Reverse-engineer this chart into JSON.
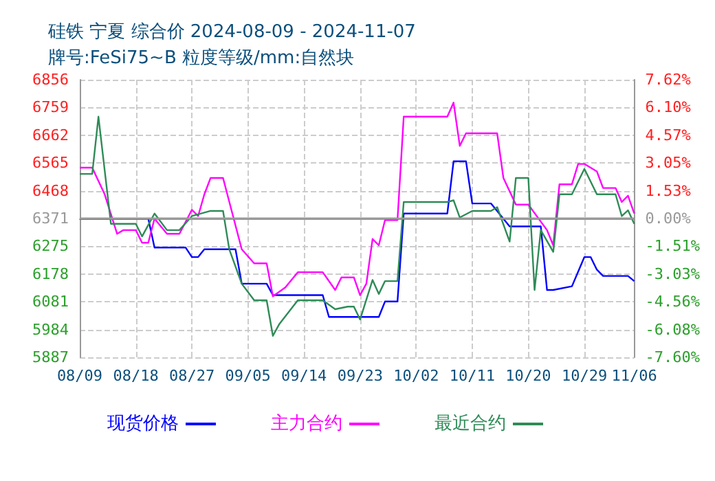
{
  "chart_data": {
    "type": "line",
    "title": "硅铁 宁夏 综合价 2024-08-09 - 2024-11-07",
    "subtitle": "牌号:FeSi75~B 粒度等级/mm:自然块",
    "xlim": [
      "2024-08-09",
      "2024-11-06"
    ],
    "xticks": [
      {
        "value": "2024-08-09",
        "label": "08/09"
      },
      {
        "value": "2024-08-18",
        "label": "08/18"
      },
      {
        "value": "2024-08-27",
        "label": "08/27"
      },
      {
        "value": "2024-09-05",
        "label": "09/05"
      },
      {
        "value": "2024-09-14",
        "label": "09/14"
      },
      {
        "value": "2024-09-23",
        "label": "09/23"
      },
      {
        "value": "2024-10-02",
        "label": "10/02"
      },
      {
        "value": "2024-10-11",
        "label": "10/11"
      },
      {
        "value": "2024-10-20",
        "label": "10/20"
      },
      {
        "value": "2024-10-29",
        "label": "10/29"
      },
      {
        "value": "2024-11-06",
        "label": "11/06"
      }
    ],
    "ylim": [
      5887,
      6856
    ],
    "yticks": [
      5887,
      5984,
      6081,
      6178,
      6275,
      6371,
      6468,
      6565,
      6662,
      6759,
      6856
    ],
    "y2lim": [
      -7.6,
      7.62
    ],
    "y2ticks": [
      {
        "value": -7.6,
        "label": "-7.60%"
      },
      {
        "value": -6.08,
        "label": "-6.08%"
      },
      {
        "value": -4.56,
        "label": "-4.56%"
      },
      {
        "value": -3.03,
        "label": "-3.03%"
      },
      {
        "value": -1.51,
        "label": "-1.51%"
      },
      {
        "value": 0,
        "label": "0.00%"
      },
      {
        "value": 1.53,
        "label": "1.53%"
      },
      {
        "value": 3.05,
        "label": "3.05%"
      },
      {
        "value": 4.57,
        "label": "4.57%"
      },
      {
        "value": 6.1,
        "label": "6.10%"
      },
      {
        "value": 7.62,
        "label": "7.62%"
      }
    ],
    "grid": true,
    "legend": "bottom",
    "marker": "none",
    "line_style": "solid",
    "ref_lines": [
      {
        "axis": "y",
        "value": 6371,
        "color": "#999999",
        "line_style": "solid"
      }
    ],
    "series": [
      {
        "name": "现货价格",
        "color": "#0000ff",
        "x": [
          "2024-08-09",
          "2024-08-20",
          "2024-08-21",
          "2024-08-26",
          "2024-08-27",
          "2024-08-28",
          "2024-08-29",
          "2024-09-03",
          "2024-09-04",
          "2024-09-08",
          "2024-09-09",
          "2024-09-17",
          "2024-09-18",
          "2024-09-26",
          "2024-09-27",
          "2024-09-29",
          "2024-09-30",
          "2024-10-07",
          "2024-10-08",
          "2024-10-10",
          "2024-10-11",
          "2024-10-14",
          "2024-10-17",
          "2024-10-22",
          "2024-10-23",
          "2024-10-24",
          "2024-10-27",
          "2024-10-29",
          "2024-10-30",
          "2024-10-31",
          "2024-11-01",
          "2024-11-05",
          "2024-11-06"
        ],
        "values": [
          6371,
          6371,
          6270,
          6270,
          6237,
          6237,
          6264,
          6264,
          6144,
          6144,
          6104,
          6104,
          6028,
          6028,
          6082,
          6082,
          6389,
          6389,
          6571,
          6571,
          6424,
          6424,
          6344,
          6344,
          6122,
          6122,
          6135,
          6237,
          6237,
          6193,
          6171,
          6171,
          6153
        ]
      },
      {
        "name": "主力合约",
        "color": "#ff00ff",
        "x": [
          "2024-08-09",
          "2024-08-11",
          "2024-08-13",
          "2024-08-15",
          "2024-08-16",
          "2024-08-18",
          "2024-08-19",
          "2024-08-20",
          "2024-08-21",
          "2024-08-23",
          "2024-08-25",
          "2024-08-27",
          "2024-08-28",
          "2024-08-29",
          "2024-08-30",
          "2024-09-01",
          "2024-09-04",
          "2024-09-06",
          "2024-09-08",
          "2024-09-09",
          "2024-09-11",
          "2024-09-13",
          "2024-09-17",
          "2024-09-19",
          "2024-09-20",
          "2024-09-22",
          "2024-09-23",
          "2024-09-24",
          "2024-09-25",
          "2024-09-26",
          "2024-09-27",
          "2024-09-29",
          "2024-09-30",
          "2024-10-07",
          "2024-10-08",
          "2024-10-09",
          "2024-10-10",
          "2024-10-15",
          "2024-10-16",
          "2024-10-18",
          "2024-10-20",
          "2024-10-23",
          "2024-10-24",
          "2024-10-25",
          "2024-10-27",
          "2024-10-28",
          "2024-10-29",
          "2024-10-31",
          "2024-11-01",
          "2024-11-03",
          "2024-11-04",
          "2024-11-05",
          "2024-11-06"
        ],
        "values": [
          6549,
          6549,
          6456,
          6318,
          6331,
          6331,
          6287,
          6287,
          6371,
          6318,
          6318,
          6402,
          6380,
          6456,
          6513,
          6513,
          6264,
          6215,
          6215,
          6100,
          6131,
          6184,
          6184,
          6122,
          6166,
          6166,
          6104,
          6144,
          6300,
          6278,
          6366,
          6366,
          6727,
          6727,
          6776,
          6625,
          6669,
          6669,
          6513,
          6420,
          6420,
          6331,
          6278,
          6491,
          6491,
          6562,
          6562,
          6536,
          6478,
          6478,
          6429,
          6451,
          6389
        ]
      },
      {
        "name": "最近合约",
        "color": "#2e8b57",
        "x": [
          "2024-08-09",
          "2024-08-11",
          "2024-08-12",
          "2024-08-14",
          "2024-08-18",
          "2024-08-19",
          "2024-08-21",
          "2024-08-23",
          "2024-08-25",
          "2024-08-27",
          "2024-08-30",
          "2024-09-01",
          "2024-09-02",
          "2024-09-04",
          "2024-09-06",
          "2024-09-08",
          "2024-09-09",
          "2024-09-10",
          "2024-09-13",
          "2024-09-17",
          "2024-09-19",
          "2024-09-21",
          "2024-09-22",
          "2024-09-23",
          "2024-09-25",
          "2024-09-26",
          "2024-09-27",
          "2024-09-29",
          "2024-09-30",
          "2024-10-07",
          "2024-10-08",
          "2024-10-09",
          "2024-10-11",
          "2024-10-14",
          "2024-10-15",
          "2024-10-17",
          "2024-10-18",
          "2024-10-20",
          "2024-10-21",
          "2024-10-22",
          "2024-10-24",
          "2024-10-25",
          "2024-10-27",
          "2024-10-29",
          "2024-10-31",
          "2024-11-03",
          "2024-11-04",
          "2024-11-05",
          "2024-11-06"
        ],
        "values": [
          6527,
          6527,
          6727,
          6353,
          6353,
          6309,
          6389,
          6331,
          6331,
          6380,
          6398,
          6398,
          6264,
          6144,
          6086,
          6086,
          5962,
          6002,
          6086,
          6086,
          6055,
          6064,
          6064,
          6019,
          6157,
          6108,
          6153,
          6153,
          6429,
          6429,
          6435,
          6375,
          6398,
          6398,
          6411,
          6291,
          6513,
          6513,
          6122,
          6331,
          6255,
          6456,
          6456,
          6545,
          6456,
          6456,
          6380,
          6400,
          6353
        ]
      }
    ]
  }
}
